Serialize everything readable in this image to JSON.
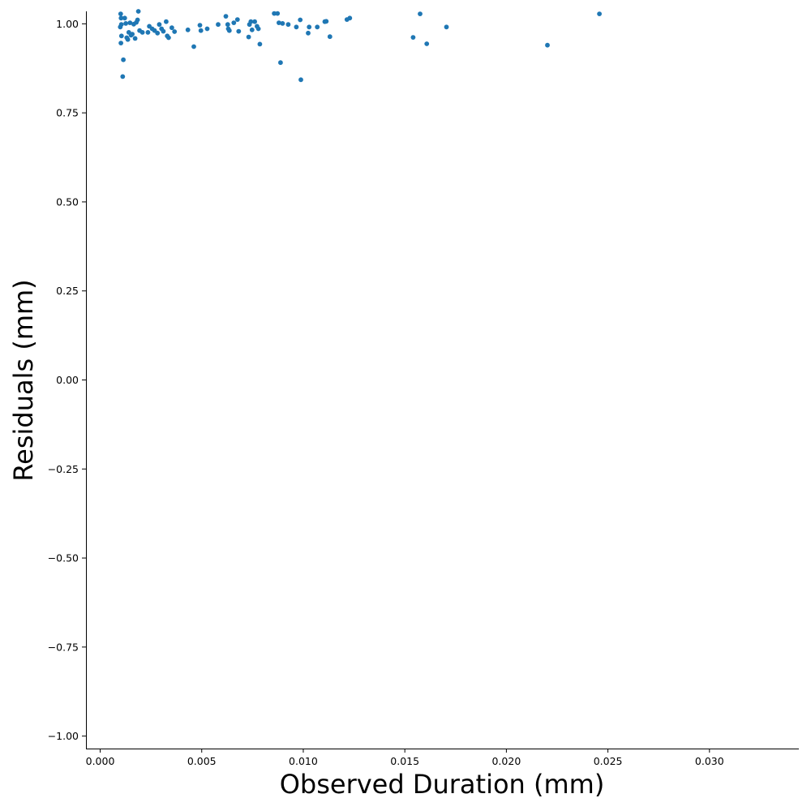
{
  "chart_data": {
    "type": "scatter",
    "title": "",
    "xlabel": "Observed Duration (mm)",
    "ylabel": "Residuals (mm)",
    "xlim": [
      -0.0007,
      0.0344
    ],
    "ylim": [
      -1.035,
      1.035
    ],
    "x_ticks": [
      0.0,
      0.005,
      0.01,
      0.015,
      0.02,
      0.025,
      0.03
    ],
    "x_tick_labels": [
      "0.000",
      "0.005",
      "0.010",
      "0.015",
      "0.020",
      "0.025",
      "0.030"
    ],
    "y_ticks": [
      1.0,
      0.75,
      0.5,
      0.25,
      0.0,
      -0.25,
      -0.5,
      -0.75,
      -1.0
    ],
    "y_tick_labels": [
      "1.00",
      "0.75",
      "0.50",
      "0.25",
      "0.00",
      "−0.25",
      "−0.50",
      "−0.75",
      "−1.00"
    ],
    "grid": false,
    "marker_color": "#1f77b4",
    "points": [
      {
        "x": 0.00101,
        "y": 1.028
      },
      {
        "x": 0.00103,
        "y": 1.016
      },
      {
        "x": 0.00104,
        "y": 0.998
      },
      {
        "x": 0.00099,
        "y": 0.991
      },
      {
        "x": 0.00105,
        "y": 0.966
      },
      {
        "x": 0.00102,
        "y": 0.946
      },
      {
        "x": 0.00114,
        "y": 0.899
      },
      {
        "x": 0.00111,
        "y": 0.852
      },
      {
        "x": 0.00121,
        "y": 1.016
      },
      {
        "x": 0.00126,
        "y": 1.001
      },
      {
        "x": 0.00131,
        "y": 0.961
      },
      {
        "x": 0.00136,
        "y": 0.956
      },
      {
        "x": 0.00141,
        "y": 0.976
      },
      {
        "x": 0.00147,
        "y": 1.003
      },
      {
        "x": 0.00152,
        "y": 0.968
      },
      {
        "x": 0.00158,
        "y": 0.971
      },
      {
        "x": 0.00165,
        "y": 0.999
      },
      {
        "x": 0.00172,
        "y": 0.959
      },
      {
        "x": 0.00178,
        "y": 1.004
      },
      {
        "x": 0.00184,
        "y": 1.011
      },
      {
        "x": 0.00188,
        "y": 1.035
      },
      {
        "x": 0.00194,
        "y": 0.981
      },
      {
        "x": 0.00208,
        "y": 0.976
      },
      {
        "x": 0.00235,
        "y": 0.976
      },
      {
        "x": 0.00242,
        "y": 0.993
      },
      {
        "x": 0.00256,
        "y": 0.986
      },
      {
        "x": 0.00268,
        "y": 0.981
      },
      {
        "x": 0.00282,
        "y": 0.974
      },
      {
        "x": 0.00291,
        "y": 0.998
      },
      {
        "x": 0.00302,
        "y": 0.986
      },
      {
        "x": 0.00311,
        "y": 0.979
      },
      {
        "x": 0.00325,
        "y": 1.006
      },
      {
        "x": 0.0033,
        "y": 0.966
      },
      {
        "x": 0.00337,
        "y": 0.961
      },
      {
        "x": 0.00353,
        "y": 0.989
      },
      {
        "x": 0.00366,
        "y": 0.978
      },
      {
        "x": 0.00432,
        "y": 0.983
      },
      {
        "x": 0.00461,
        "y": 0.936
      },
      {
        "x": 0.00491,
        "y": 0.996
      },
      {
        "x": 0.00496,
        "y": 0.981
      },
      {
        "x": 0.00527,
        "y": 0.986
      },
      {
        "x": 0.00581,
        "y": 0.998
      },
      {
        "x": 0.00619,
        "y": 1.021
      },
      {
        "x": 0.00628,
        "y": 0.998
      },
      {
        "x": 0.00631,
        "y": 0.986
      },
      {
        "x": 0.00636,
        "y": 0.981
      },
      {
        "x": 0.00658,
        "y": 1.003
      },
      {
        "x": 0.00676,
        "y": 1.012
      },
      {
        "x": 0.00682,
        "y": 0.979
      },
      {
        "x": 0.00731,
        "y": 0.963
      },
      {
        "x": 0.00735,
        "y": 0.998
      },
      {
        "x": 0.00742,
        "y": 1.006
      },
      {
        "x": 0.00748,
        "y": 0.983
      },
      {
        "x": 0.00761,
        "y": 1.006
      },
      {
        "x": 0.00772,
        "y": 0.993
      },
      {
        "x": 0.00779,
        "y": 0.986
      },
      {
        "x": 0.00786,
        "y": 0.943
      },
      {
        "x": 0.00857,
        "y": 1.029
      },
      {
        "x": 0.00873,
        "y": 1.029
      },
      {
        "x": 0.0088,
        "y": 1.003
      },
      {
        "x": 0.00888,
        "y": 0.891
      },
      {
        "x": 0.00898,
        "y": 1.001
      },
      {
        "x": 0.00926,
        "y": 0.998
      },
      {
        "x": 0.00966,
        "y": 0.991
      },
      {
        "x": 0.00985,
        "y": 1.011
      },
      {
        "x": 0.00988,
        "y": 0.843
      },
      {
        "x": 0.01024,
        "y": 0.974
      },
      {
        "x": 0.01029,
        "y": 0.991
      },
      {
        "x": 0.01069,
        "y": 0.991
      },
      {
        "x": 0.01106,
        "y": 1.006
      },
      {
        "x": 0.01113,
        "y": 1.007
      },
      {
        "x": 0.01131,
        "y": 0.964
      },
      {
        "x": 0.01215,
        "y": 1.012
      },
      {
        "x": 0.01229,
        "y": 1.016
      },
      {
        "x": 0.01541,
        "y": 0.962
      },
      {
        "x": 0.01575,
        "y": 1.028
      },
      {
        "x": 0.01608,
        "y": 0.944
      },
      {
        "x": 0.01705,
        "y": 0.991
      },
      {
        "x": 0.02202,
        "y": 0.94
      },
      {
        "x": 0.02458,
        "y": 1.028
      }
    ]
  }
}
